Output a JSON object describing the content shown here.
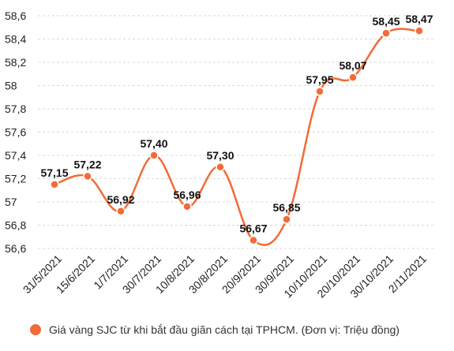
{
  "chart_data": {
    "type": "line",
    "categories": [
      "31/5/2021",
      "15/6/2021",
      "1/7/2021",
      "30/7/2021",
      "10/8/2021",
      "30/8/2021",
      "20/9/2021",
      "30/9/2021",
      "10/10/2021",
      "20/10/2021",
      "30/10/2021",
      "2/11/2021"
    ],
    "series": [
      {
        "name": "Giá vàng SJC từ khi bắt đầu giãn cách tại TPHCM. (Đơn vị: Triệu đồng)",
        "values": [
          57.15,
          57.22,
          56.92,
          57.4,
          56.96,
          57.3,
          56.67,
          56.85,
          57.95,
          58.07,
          58.45,
          58.47
        ],
        "value_labels": [
          "57,15",
          "57,22",
          "56,92",
          "57,40",
          "56,96",
          "57,30",
          "56,67",
          "56,85",
          "57,95",
          "58,07",
          "58,45",
          "58,47"
        ],
        "color": "#f26b38"
      }
    ],
    "y_ticks": [
      56.6,
      56.8,
      57,
      57.2,
      57.4,
      57.6,
      57.8,
      58,
      58.2,
      58.4,
      58.6
    ],
    "y_tick_labels": [
      "56,6",
      "56,8",
      "57",
      "57,2",
      "57,4",
      "57,6",
      "57,8",
      "58",
      "58,2",
      "58,4",
      "58,6"
    ],
    "ylim": [
      56.6,
      58.6
    ],
    "grid": true,
    "legend_position": "bottom",
    "title": "",
    "xlabel": "",
    "ylabel": ""
  }
}
